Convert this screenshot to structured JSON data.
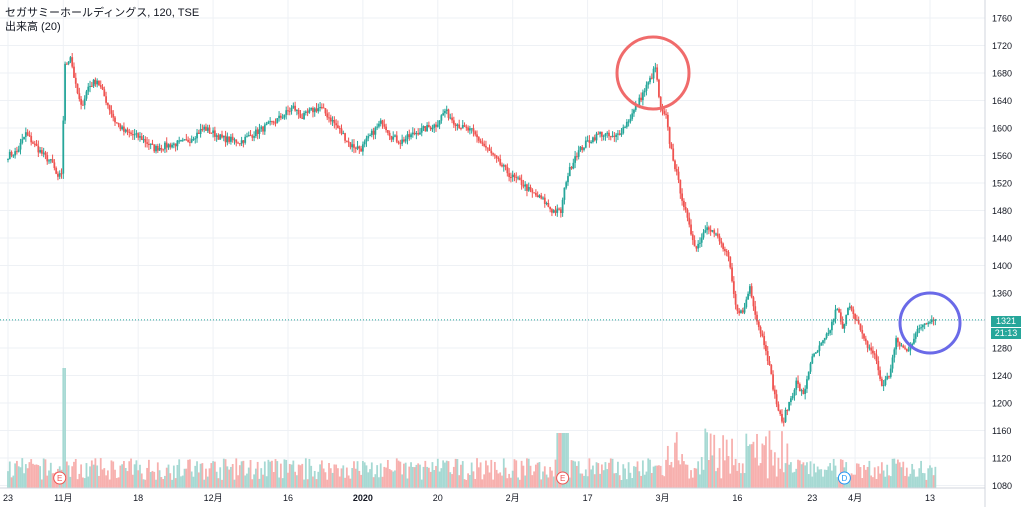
{
  "header": {
    "title": "セガサミーホールディングス, 120, TSE",
    "volume_label": "出来高 (20)"
  },
  "price_badge": {
    "price": "1321",
    "countdown": "21:13"
  },
  "colors": {
    "up": "#26a69a",
    "down": "#ef5350",
    "vol_up": "#a6d9d3",
    "vol_down": "#f7b0ae",
    "grid": "#eef1f5",
    "price_line": "#26a69a",
    "circle_red": "#f06b6b",
    "circle_blue": "#6a6ae8"
  },
  "chart_data": {
    "type": "candlestick",
    "y_axis": {
      "ylim": [
        1070,
        1775
      ],
      "ticks": [
        1080,
        1120,
        1160,
        1200,
        1240,
        1280,
        1320,
        1360,
        1400,
        1440,
        1480,
        1520,
        1560,
        1600,
        1640,
        1680,
        1720,
        1760
      ]
    },
    "x_axis": {
      "labels": [
        {
          "label": "23",
          "i": 0
        },
        {
          "label": "11月",
          "i": 31
        },
        {
          "label": "18",
          "i": 73
        },
        {
          "label": "12月",
          "i": 115
        },
        {
          "label": "16",
          "i": 157
        },
        {
          "label": "2020",
          "i": 199,
          "bold": true
        },
        {
          "label": "20",
          "i": 241
        },
        {
          "label": "2月",
          "i": 283
        },
        {
          "label": "17",
          "i": 325
        },
        {
          "label": "3月",
          "i": 367
        },
        {
          "label": "16",
          "i": 409
        },
        {
          "label": "23",
          "i": 451
        },
        {
          "label": "4月",
          "i": 475
        },
        {
          "label": "13",
          "i": 517
        }
      ]
    },
    "event_markers": [
      {
        "label": "E",
        "i": 29,
        "color": "#ef5350"
      },
      {
        "label": "E",
        "i": 311,
        "color": "#ef5350"
      },
      {
        "label": "D",
        "i": 469,
        "color": "#2196f3"
      }
    ],
    "current_price": 1321,
    "price_anchors": [
      [
        0,
        1560
      ],
      [
        5,
        1565
      ],
      [
        10,
        1592
      ],
      [
        15,
        1575
      ],
      [
        20,
        1560
      ],
      [
        25,
        1548
      ],
      [
        28,
        1525
      ],
      [
        30,
        1535
      ],
      [
        32,
        1690
      ],
      [
        35,
        1705
      ],
      [
        38,
        1660
      ],
      [
        41,
        1630
      ],
      [
        45,
        1660
      ],
      [
        50,
        1670
      ],
      [
        55,
        1640
      ],
      [
        60,
        1610
      ],
      [
        65,
        1595
      ],
      [
        75,
        1585
      ],
      [
        82,
        1570
      ],
      [
        90,
        1575
      ],
      [
        100,
        1580
      ],
      [
        110,
        1600
      ],
      [
        120,
        1585
      ],
      [
        130,
        1580
      ],
      [
        140,
        1595
      ],
      [
        150,
        1610
      ],
      [
        160,
        1630
      ],
      [
        165,
        1615
      ],
      [
        170,
        1625
      ],
      [
        175,
        1630
      ],
      [
        182,
        1610
      ],
      [
        188,
        1590
      ],
      [
        192,
        1575
      ],
      [
        198,
        1570
      ],
      [
        205,
        1595
      ],
      [
        210,
        1610
      ],
      [
        215,
        1588
      ],
      [
        220,
        1580
      ],
      [
        230,
        1595
      ],
      [
        240,
        1605
      ],
      [
        245,
        1625
      ],
      [
        250,
        1610
      ],
      [
        255,
        1600
      ],
      [
        260,
        1595
      ],
      [
        265,
        1580
      ],
      [
        275,
        1550
      ],
      [
        282,
        1530
      ],
      [
        288,
        1520
      ],
      [
        294,
        1505
      ],
      [
        300,
        1495
      ],
      [
        305,
        1480
      ],
      [
        310,
        1478
      ],
      [
        313,
        1525
      ],
      [
        318,
        1560
      ],
      [
        325,
        1580
      ],
      [
        332,
        1592
      ],
      [
        340,
        1585
      ],
      [
        345,
        1600
      ],
      [
        350,
        1620
      ],
      [
        355,
        1645
      ],
      [
        360,
        1670
      ],
      [
        363,
        1688
      ],
      [
        366,
        1625
      ],
      [
        369,
        1615
      ],
      [
        371,
        1580
      ],
      [
        376,
        1520
      ],
      [
        382,
        1455
      ],
      [
        386,
        1425
      ],
      [
        392,
        1460
      ],
      [
        398,
        1440
      ],
      [
        404,
        1410
      ],
      [
        408,
        1340
      ],
      [
        412,
        1330
      ],
      [
        416,
        1370
      ],
      [
        420,
        1320
      ],
      [
        425,
        1280
      ],
      [
        430,
        1210
      ],
      [
        434,
        1170
      ],
      [
        438,
        1200
      ],
      [
        442,
        1230
      ],
      [
        446,
        1210
      ],
      [
        450,
        1260
      ],
      [
        455,
        1280
      ],
      [
        460,
        1300
      ],
      [
        465,
        1340
      ],
      [
        468,
        1305
      ],
      [
        472,
        1345
      ],
      [
        476,
        1320
      ],
      [
        480,
        1290
      ],
      [
        486,
        1270
      ],
      [
        490,
        1225
      ],
      [
        494,
        1240
      ],
      [
        498,
        1290
      ],
      [
        504,
        1275
      ],
      [
        509,
        1300
      ],
      [
        513,
        1315
      ],
      [
        517,
        1322
      ],
      [
        520,
        1321
      ]
    ],
    "volume_scale_note": "relative"
  }
}
